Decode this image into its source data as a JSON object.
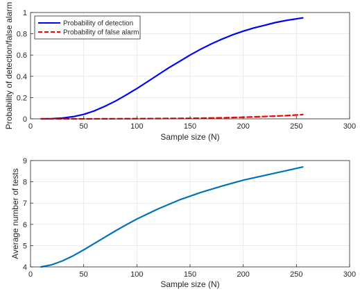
{
  "chart_data": [
    {
      "type": "line",
      "xlabel": "Sample size (N)",
      "ylabel": "Probability of detection/false alarm",
      "xlim": [
        0,
        300
      ],
      "ylim": [
        0,
        1
      ],
      "xticks": [
        0,
        50,
        100,
        150,
        200,
        250,
        300
      ],
      "yticks": [
        0,
        0.2,
        0.4,
        0.6,
        0.8,
        1
      ],
      "ytick_labels": [
        "0",
        "0.2",
        "0.4",
        "0.6",
        "0.8",
        "1"
      ],
      "grid": true,
      "legend_position": "top-left",
      "series": [
        {
          "name": "Probability of detection",
          "color": "#0000ff",
          "dash": "solid",
          "x": [
            10,
            20,
            30,
            40,
            50,
            60,
            70,
            80,
            90,
            100,
            110,
            120,
            130,
            140,
            150,
            160,
            170,
            180,
            190,
            200,
            210,
            220,
            230,
            240,
            256
          ],
          "y": [
            0.0,
            0.002,
            0.008,
            0.02,
            0.042,
            0.075,
            0.118,
            0.168,
            0.225,
            0.285,
            0.35,
            0.415,
            0.48,
            0.54,
            0.6,
            0.655,
            0.705,
            0.75,
            0.79,
            0.825,
            0.855,
            0.88,
            0.905,
            0.925,
            0.95
          ]
        },
        {
          "name": "Probability of false alarm",
          "color": "#ff0000",
          "dash": "dashed",
          "x": [
            10,
            50,
            100,
            150,
            180,
            200,
            220,
            240,
            256
          ],
          "y": [
            0.0,
            0.0,
            0.002,
            0.005,
            0.01,
            0.015,
            0.022,
            0.03,
            0.04
          ]
        }
      ]
    },
    {
      "type": "line",
      "xlabel": "Sample size (N)",
      "ylabel": "Average number of tests",
      "xlim": [
        0,
        300
      ],
      "ylim": [
        4,
        9
      ],
      "xticks": [
        0,
        50,
        100,
        150,
        200,
        250,
        300
      ],
      "yticks": [
        4,
        5,
        6,
        7,
        8,
        9
      ],
      "ytick_labels": [
        "4",
        "5",
        "6",
        "7",
        "8",
        "9"
      ],
      "grid": true,
      "series": [
        {
          "color": "#0072bd",
          "dash": "solid",
          "x": [
            10,
            20,
            30,
            40,
            50,
            60,
            70,
            80,
            90,
            100,
            120,
            140,
            160,
            180,
            200,
            220,
            240,
            256
          ],
          "y": [
            4.0,
            4.1,
            4.28,
            4.52,
            4.8,
            5.1,
            5.4,
            5.7,
            5.98,
            6.25,
            6.73,
            7.15,
            7.5,
            7.8,
            8.08,
            8.3,
            8.52,
            8.7
          ]
        }
      ]
    }
  ]
}
